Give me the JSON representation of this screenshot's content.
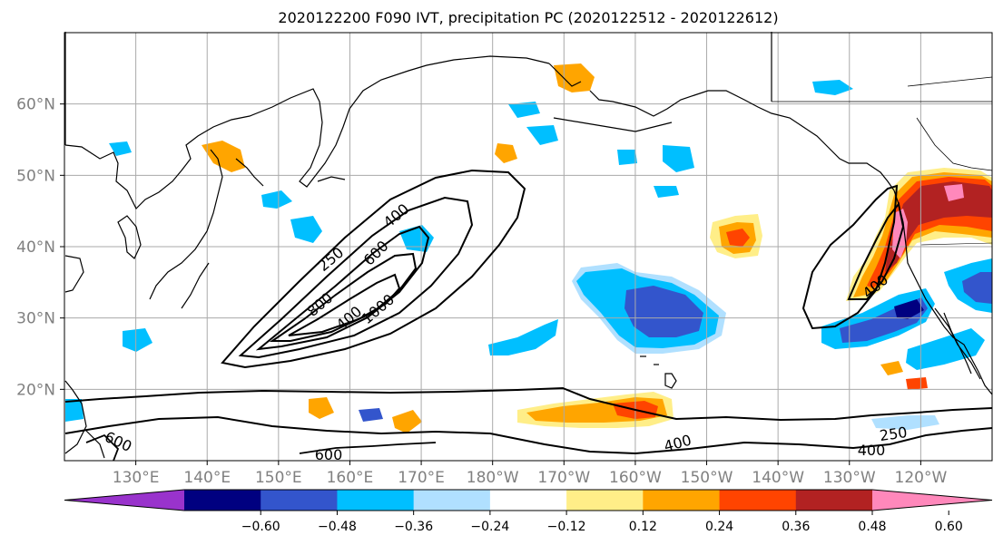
{
  "title": "2020122200 F090 IVT, precipitation PC (2020122512 - 2020122612)",
  "map": {
    "lon_range": [
      120,
      250
    ],
    "lat_range": [
      10,
      70
    ],
    "lon_ticks": [
      "130°E",
      "140°E",
      "150°E",
      "160°E",
      "170°E",
      "180°W",
      "170°W",
      "160°W",
      "150°W",
      "140°W",
      "130°W",
      "120°W"
    ],
    "lat_ticks": [
      "20°N",
      "30°N",
      "40°N",
      "50°N",
      "60°N"
    ],
    "gridlines": true
  },
  "contour_labels": [
    "250",
    "400",
    "600",
    "800",
    "1000",
    "400",
    "600",
    "400",
    "250",
    "600",
    "400",
    "400"
  ],
  "colorbar": {
    "ticks": [
      "−0.60",
      "−0.48",
      "−0.36",
      "−0.24",
      "−0.12",
      "0.12",
      "0.24",
      "0.36",
      "0.48",
      "0.60"
    ],
    "colors": [
      "#9933cc",
      "#000080",
      "#3355cc",
      "#00bfff",
      "#b0e0ff",
      "#ffffff",
      "#ffee88",
      "#ffa500",
      "#ff4400",
      "#b22222",
      "#ff88bb"
    ],
    "extend": "both"
  }
}
